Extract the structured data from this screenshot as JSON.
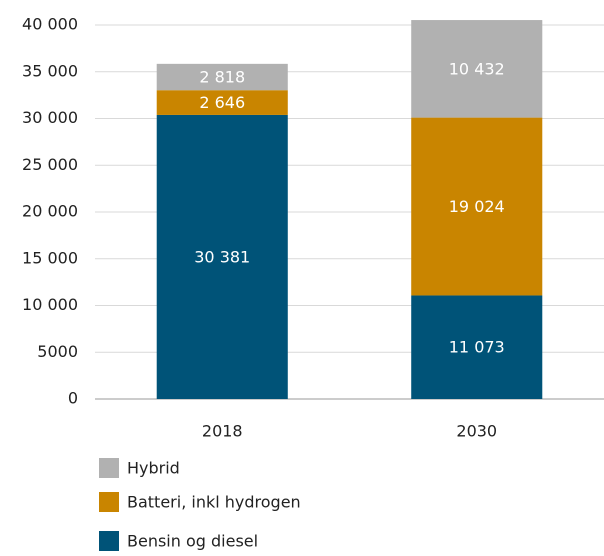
{
  "chart_data": {
    "type": "stacked_bar",
    "categories": [
      "2018",
      "2030"
    ],
    "series": [
      {
        "name": "Bensin og diesel",
        "color": "#005378",
        "values": [
          30381,
          11073
        ],
        "value_labels": [
          "30 381",
          "11 073"
        ]
      },
      {
        "name": "Batteri, inkl hydrogen",
        "color": "#c98500",
        "values": [
          2646,
          19024
        ],
        "value_labels": [
          "2 646",
          "19 024"
        ]
      },
      {
        "name": "Hybrid",
        "color": "#b1b1b1",
        "values": [
          2818,
          10432
        ],
        "value_labels": [
          "2 818",
          "10 432"
        ]
      }
    ],
    "ylim": [
      0,
      40000
    ],
    "yticks": [
      0,
      5000,
      {
        "value": 10000,
        "label": "10 000"
      },
      {
        "value": 15000,
        "label": "15 000"
      },
      {
        "value": 20000,
        "label": "20 000"
      },
      {
        "value": 25000,
        "label": "25 000"
      },
      {
        "value": 30000,
        "label": "30 000"
      },
      {
        "value": 35000,
        "label": "35 000"
      },
      {
        "value": 40000,
        "label": "40 000"
      }
    ],
    "grid": true
  }
}
